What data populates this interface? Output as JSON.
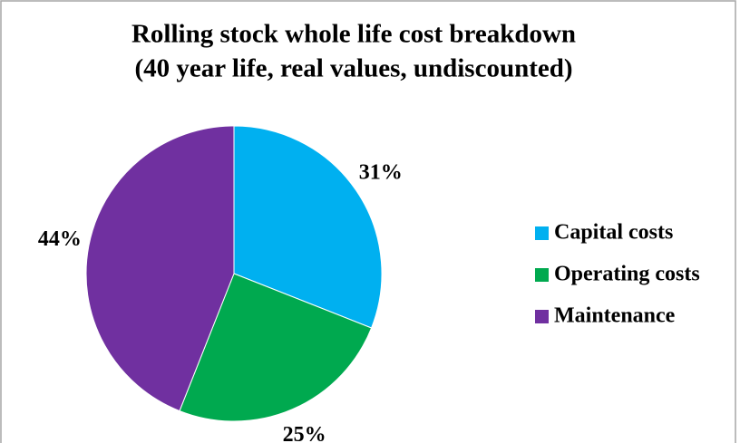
{
  "chart_data": {
    "type": "pie",
    "title": [
      "Rolling stock whole life cost breakdown",
      "(40 year life, real values, undiscounted)"
    ],
    "categories": [
      "Capital costs",
      "Operating costs",
      "Maintenance"
    ],
    "values": [
      31,
      25,
      44
    ],
    "value_labels": [
      "31%",
      "25%",
      "44%"
    ],
    "colors": [
      "#00b0f0",
      "#00a94f",
      "#7030a0"
    ],
    "legend": "right"
  }
}
